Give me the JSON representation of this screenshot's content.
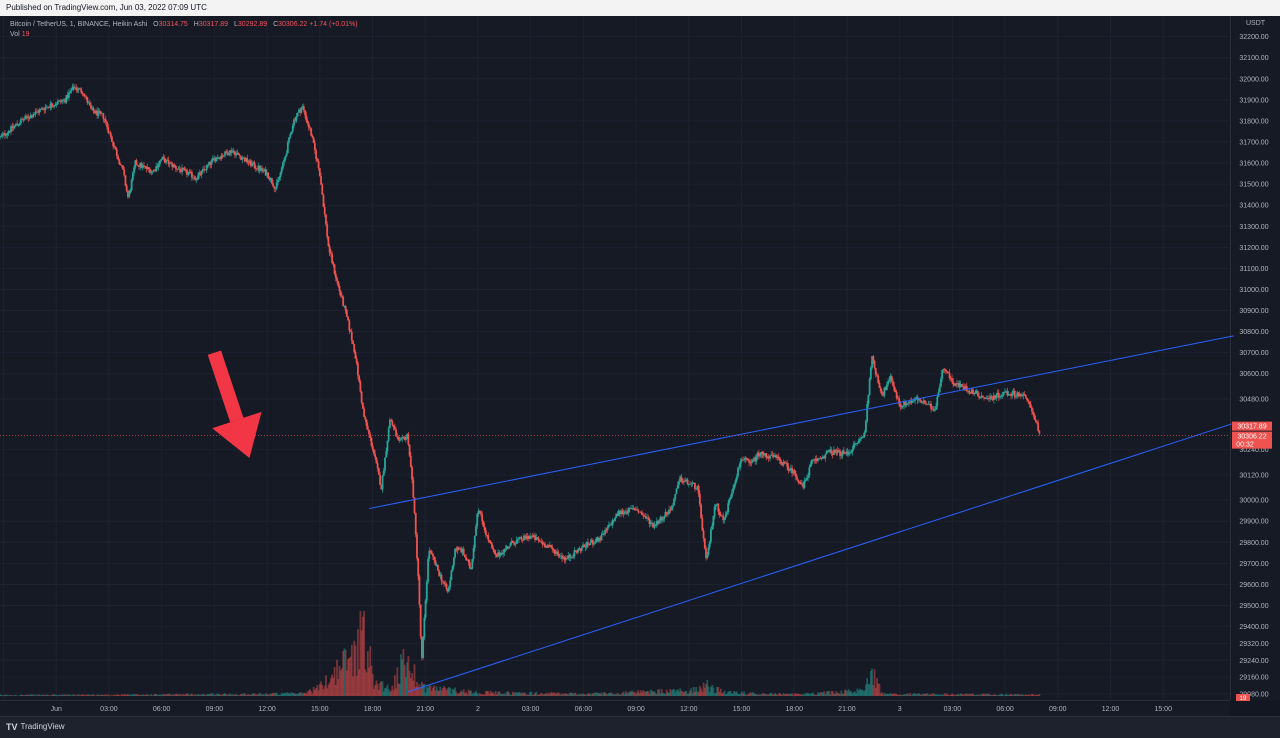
{
  "header": {
    "published": "Published on TradingView.com, Jun 03, 2022 07:09 UTC"
  },
  "legend": {
    "symbol": "Bitcoin / TetherUS, 1, BINANCE, Heikin Ashi",
    "open_label": "O",
    "open": "30314.75",
    "high_label": "H",
    "high": "30317.89",
    "low_label": "L",
    "low": "30292.89",
    "close_label": "C",
    "close": "30306.22",
    "change": "+1.74 (+0.01%)",
    "vol_label": "Vol",
    "vol": "19"
  },
  "price_axis": {
    "currency": "USDT",
    "last_price_tag": "30317.89",
    "close_tag": "30306.22",
    "countdown": "00:32",
    "volume_tag": "19"
  },
  "footer": {
    "brand": "TradingView",
    "brand_icon": "tradingview-logo-icon"
  },
  "colors": {
    "background": "#131722",
    "up": "#26a69a",
    "down": "#ef5350",
    "trendline": "#2962ff",
    "arrow": "#f23645"
  },
  "chart_data": {
    "type": "candlestick",
    "subtype": "Heikin Ashi",
    "interval": "1",
    "exchange": "BINANCE",
    "ylim": [
      29080,
      32260
    ],
    "y_ticks": [
      32200,
      32100,
      32000,
      31900,
      31800,
      31700,
      31600,
      31500,
      31400,
      31300,
      31200,
      31100,
      31000,
      30900,
      30800,
      30700,
      30600,
      30480,
      30240,
      30120,
      30000,
      29900,
      29800,
      29700,
      29600,
      29500,
      29400,
      29320,
      29240,
      29160,
      29080
    ],
    "y_tick_labels": [
      "32200.00",
      "32100.00",
      "32000.00",
      "31900.00",
      "31800.00",
      "31700.00",
      "31600.00",
      "31500.00",
      "31400.00",
      "31300.00",
      "31200.00",
      "31100.00",
      "31000.00",
      "30900.00",
      "30800.00",
      "30700.00",
      "30600.00",
      "30480.00",
      "30240.00",
      "30120.00",
      "30000.00",
      "29900.00",
      "29800.00",
      "29700.00",
      "29600.00",
      "29500.00",
      "29400.00",
      "29320.00",
      "29240.00",
      "29160.00",
      "29080.00"
    ],
    "x_tick_labels": [
      "21:00",
      "Jun",
      "03:00",
      "06:00",
      "09:00",
      "12:00",
      "15:00",
      "18:00",
      "21:00",
      "2",
      "03:00",
      "06:00",
      "09:00",
      "12:00",
      "15:00",
      "18:00",
      "21:00",
      "3",
      "03:00",
      "06:00",
      "09:00",
      "12:00",
      "15:00"
    ],
    "x_ticks_hours": [
      -3,
      0,
      3,
      6,
      9,
      12,
      15,
      18,
      21,
      24,
      27,
      30,
      33,
      36,
      39,
      42,
      45,
      48,
      51,
      54,
      57,
      60,
      63
    ],
    "x_range_hours": [
      -3.2,
      66.8
    ],
    "price_path": [
      [
        -3.2,
        31720
      ],
      [
        -2.0,
        31800
      ],
      [
        -0.5,
        31870
      ],
      [
        0.5,
        31900
      ],
      [
        1.0,
        31960
      ],
      [
        1.5,
        31940
      ],
      [
        2.0,
        31850
      ],
      [
        2.7,
        31820
      ],
      [
        3.2,
        31700
      ],
      [
        3.8,
        31560
      ],
      [
        4.1,
        31430
      ],
      [
        4.5,
        31600
      ],
      [
        5.5,
        31560
      ],
      [
        6.0,
        31620
      ],
      [
        7.0,
        31570
      ],
      [
        8.0,
        31530
      ],
      [
        9.0,
        31620
      ],
      [
        10.0,
        31660
      ],
      [
        11.0,
        31600
      ],
      [
        12.0,
        31550
      ],
      [
        12.5,
        31480
      ],
      [
        13.0,
        31620
      ],
      [
        13.5,
        31800
      ],
      [
        14.0,
        31870
      ],
      [
        14.5,
        31740
      ],
      [
        15.0,
        31550
      ],
      [
        15.5,
        31200
      ],
      [
        16.0,
        31030
      ],
      [
        16.5,
        30880
      ],
      [
        17.0,
        30700
      ],
      [
        17.5,
        30400
      ],
      [
        18.0,
        30250
      ],
      [
        18.5,
        30060
      ],
      [
        19.0,
        30390
      ],
      [
        19.5,
        30270
      ],
      [
        20.0,
        30310
      ],
      [
        20.3,
        30050
      ],
      [
        20.6,
        29640
      ],
      [
        20.8,
        29230
      ],
      [
        21.2,
        29770
      ],
      [
        21.8,
        29650
      ],
      [
        22.3,
        29560
      ],
      [
        22.7,
        29770
      ],
      [
        23.1,
        29760
      ],
      [
        23.6,
        29670
      ],
      [
        24.0,
        29970
      ],
      [
        24.5,
        29830
      ],
      [
        25.0,
        29730
      ],
      [
        26.0,
        29800
      ],
      [
        27.0,
        29830
      ],
      [
        28.0,
        29780
      ],
      [
        29.0,
        29720
      ],
      [
        30.0,
        29780
      ],
      [
        31.0,
        29820
      ],
      [
        32.0,
        29940
      ],
      [
        33.0,
        29960
      ],
      [
        34.0,
        29880
      ],
      [
        35.0,
        29960
      ],
      [
        35.5,
        30100
      ],
      [
        36.5,
        30060
      ],
      [
        37.0,
        29700
      ],
      [
        37.5,
        29990
      ],
      [
        38.0,
        29900
      ],
      [
        38.5,
        30060
      ],
      [
        39.0,
        30200
      ],
      [
        39.5,
        30170
      ],
      [
        40.0,
        30220
      ],
      [
        41.0,
        30200
      ],
      [
        42.0,
        30130
      ],
      [
        42.5,
        30060
      ],
      [
        43.0,
        30180
      ],
      [
        43.5,
        30200
      ],
      [
        44.0,
        30230
      ],
      [
        45.0,
        30220
      ],
      [
        46.0,
        30310
      ],
      [
        46.4,
        30680
      ],
      [
        47.0,
        30500
      ],
      [
        47.5,
        30580
      ],
      [
        48.0,
        30450
      ],
      [
        49.0,
        30480
      ],
      [
        50.0,
        30430
      ],
      [
        50.5,
        30640
      ],
      [
        51.0,
        30560
      ],
      [
        52.0,
        30520
      ],
      [
        53.0,
        30480
      ],
      [
        54.0,
        30510
      ],
      [
        55.0,
        30500
      ],
      [
        55.5,
        30440
      ],
      [
        56.0,
        30306
      ]
    ],
    "volume_path": [
      [
        -3.2,
        2
      ],
      [
        5,
        3
      ],
      [
        12,
        5
      ],
      [
        14,
        6
      ],
      [
        15,
        20
      ],
      [
        16,
        60
      ],
      [
        17,
        100
      ],
      [
        17.5,
        180
      ],
      [
        18,
        40
      ],
      [
        19,
        15
      ],
      [
        20,
        90
      ],
      [
        20.5,
        40
      ],
      [
        21,
        20
      ],
      [
        24,
        8
      ],
      [
        30,
        5
      ],
      [
        36,
        12
      ],
      [
        37,
        25
      ],
      [
        38,
        8
      ],
      [
        42,
        4
      ],
      [
        46,
        12
      ],
      [
        46.4,
        75
      ],
      [
        47,
        5
      ],
      [
        56,
        3
      ]
    ],
    "volume_max_axis": 200,
    "trendlines": [
      {
        "from": [
          17.8,
          29960
        ],
        "to": [
          67.0,
          30780
        ]
      },
      {
        "from": [
          20.0,
          29090
        ],
        "to": [
          67.2,
          30370
        ]
      }
    ],
    "annotations": [
      {
        "type": "arrow",
        "tip": [
          11.0,
          30200
        ],
        "tail": [
          9.0,
          30700
        ]
      }
    ]
  }
}
